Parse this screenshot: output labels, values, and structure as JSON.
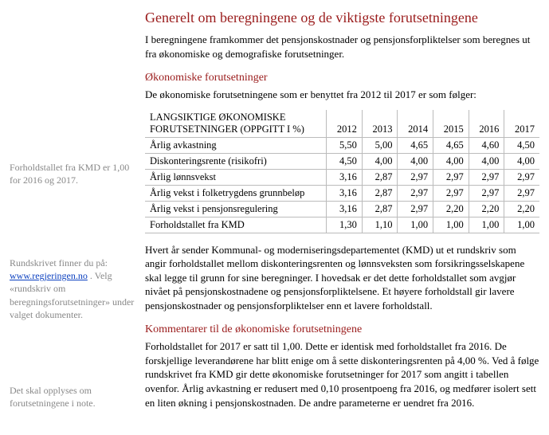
{
  "colors": {
    "heading": "#9a1b1b",
    "body": "#000000",
    "side": "#888888",
    "link": "#0a3fbf",
    "tableBorder": "#bbbbbb",
    "background": "#ffffff"
  },
  "fonts": {
    "family": "Times New Roman",
    "body_pt": 13,
    "h1_pt": 18,
    "h2_pt": 14,
    "side_pt": 12,
    "table_pt": 12.5
  },
  "title": "Generelt om beregningene og de viktigste forutsetningene",
  "intro": "I beregningene framkommer det pensjonskostnader og pensjonsforpliktelser som beregnes ut fra økonomiske og demografiske forutsetninger.",
  "section_econ_title": "Økonomiske forutsetninger",
  "section_econ_lead": "De økonomiske forutsetningene som er benyttet fra 2012 til 2017 er som følger:",
  "table": {
    "header_label": "LANGSIKTIGE ØKONOMISKE FORUTSETNINGER (OPPGITT I %)",
    "years": [
      "2012",
      "2013",
      "2014",
      "2015",
      "2016",
      "2017"
    ],
    "rows": [
      {
        "label": "Årlig avkastning",
        "values": [
          "5,50",
          "5,00",
          "4,65",
          "4,65",
          "4,60",
          "4,50"
        ]
      },
      {
        "label": "Diskonteringsrente (risikofri)",
        "values": [
          "4,50",
          "4,00",
          "4,00",
          "4,00",
          "4,00",
          "4,00"
        ]
      },
      {
        "label": "Årlig lønnsvekst",
        "values": [
          "3,16",
          "2,87",
          "2,97",
          "2,97",
          "2,97",
          "2,97"
        ]
      },
      {
        "label": "Årlig vekst i folketrygdens grunnbeløp",
        "values": [
          "3,16",
          "2,87",
          "2,97",
          "2,97",
          "2,97",
          "2,97"
        ]
      },
      {
        "label": "Årlig vekst i pensjonsregulering",
        "values": [
          "3,16",
          "2,87",
          "2,97",
          "2,20",
          "2,20",
          "2,20"
        ]
      },
      {
        "label": "Forholdstallet fra KMD",
        "values": [
          "1,30",
          "1,10",
          "1,00",
          "1,00",
          "1,00",
          "1,00"
        ]
      }
    ]
  },
  "after_table_para": "Hvert år sender Kommunal- og moderniseringsdepartementet (KMD) ut et rundskriv som angir forholdstallet mellom diskonteringsrenten og lønnsveksten som forsikringsselskapene skal legge til grunn for sine beregninger. I hovedsak er det dette forholdstallet som avgjør nivået på pensjonskostnadene og pensjonsforpliktelsene. Et høyere forholdstall gir lavere pensjonskostnader og pensjonsforpliktelser enn et lavere forholdstall.",
  "section_comments_title": "Kommentarer til de økonomiske forutsetningene",
  "comments_para": "Forholdstallet for 2017 er satt til 1,00. Dette er identisk med forholdstallet fra 2016. De forskjellige leverandørene har blitt enige om å sette diskonteringsrenten på 4,00 %. Ved å følge rundskrivet fra KMD gir dette økonomiske forutsetninger for 2017 som angitt i tabellen ovenfor. Årlig avkastning er redusert med 0,10 prosentpoeng fra 2016, og medfører isolert sett en liten økning i pensjonskostnaden. De andre parameterne er uendret fra 2016.",
  "side_notes": {
    "note1": "Forholdstallet fra KMD er 1,00 for 2016 og 2017.",
    "note2_pre": "Rundskrivet finner du på: ",
    "note2_link": "www.regjeringen.no",
    "note2_post": ". Velg «rundskriv om beregningsforutsetninger» under valget dokumenter.",
    "note3": "Det skal opplyses om forutsetningene i note."
  }
}
